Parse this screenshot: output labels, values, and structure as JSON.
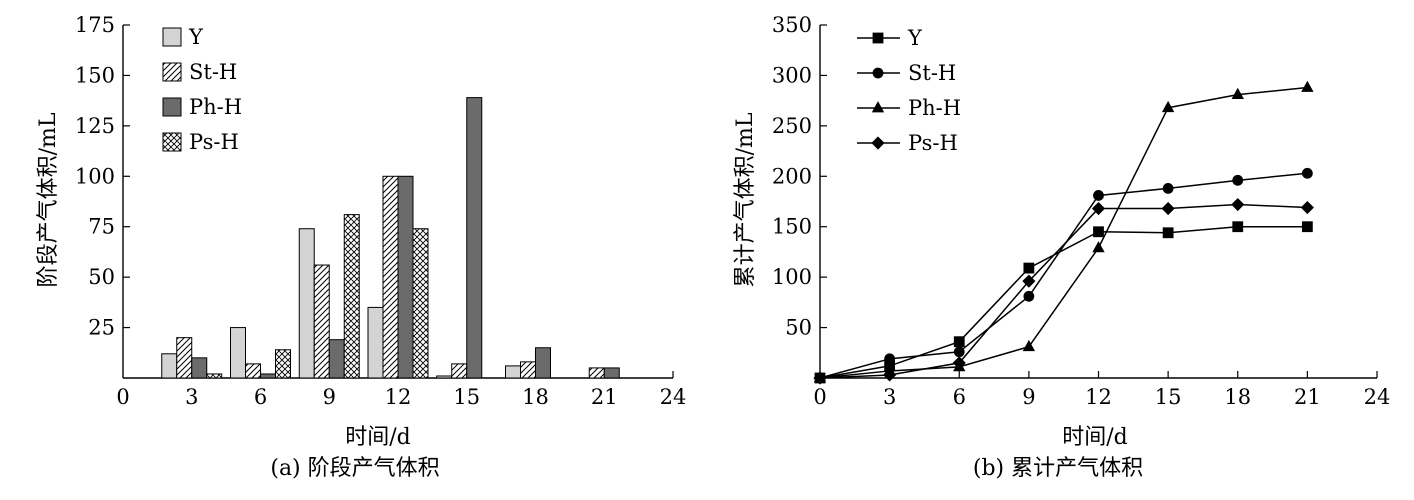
{
  "chart_data": [
    {
      "type": "bar",
      "caption": "(a) 阶段产气体积",
      "xlabel": "时间/d",
      "ylabel": "阶段产气体积/mL",
      "xlim": [
        0,
        24
      ],
      "ylim": [
        0,
        175
      ],
      "x_ticks": [
        0,
        3,
        6,
        9,
        12,
        15,
        18,
        21,
        24
      ],
      "y_ticks": [
        25,
        50,
        75,
        100,
        125,
        150,
        175
      ],
      "categories": [
        3,
        6,
        9,
        12,
        15,
        18,
        21
      ],
      "series": [
        {
          "name": "Y",
          "fill": "light-gray",
          "values": [
            12,
            25,
            74,
            35,
            1,
            6,
            0
          ]
        },
        {
          "name": "St-H",
          "fill": "hatch",
          "values": [
            20,
            7,
            56,
            100,
            7,
            8,
            5
          ]
        },
        {
          "name": "Ph-H",
          "fill": "dark-gray",
          "values": [
            10,
            2,
            19,
            100,
            139,
            15,
            5
          ]
        },
        {
          "name": "Ps-H",
          "fill": "crosshatch",
          "values": [
            2,
            14,
            81,
            74,
            0,
            0,
            0
          ]
        }
      ],
      "legend": "top-left",
      "grid": false
    },
    {
      "type": "line",
      "caption": "(b) 累计产气体积",
      "xlabel": "时间/d",
      "ylabel": "累计产气体积/mL",
      "xlim": [
        0,
        24
      ],
      "ylim": [
        0,
        350
      ],
      "x_ticks": [
        0,
        3,
        6,
        9,
        12,
        15,
        18,
        21,
        24
      ],
      "y_ticks": [
        50,
        100,
        150,
        200,
        250,
        300,
        350
      ],
      "x": [
        0,
        3,
        6,
        9,
        12,
        15,
        18,
        21
      ],
      "series": [
        {
          "name": "Y",
          "marker": "square",
          "values": [
            0,
            12,
            36,
            109,
            145,
            144,
            150,
            150
          ]
        },
        {
          "name": "St-H",
          "marker": "circle",
          "values": [
            0,
            19,
            26,
            81,
            181,
            188,
            196,
            203
          ]
        },
        {
          "name": "Ph-H",
          "marker": "triangle",
          "values": [
            0,
            7,
            11,
            31,
            129,
            268,
            281,
            288
          ]
        },
        {
          "name": "Ps-H",
          "marker": "diamond",
          "values": [
            0,
            3,
            15,
            96,
            168,
            168,
            172,
            169
          ]
        }
      ],
      "legend": "top-left",
      "grid": false
    }
  ]
}
